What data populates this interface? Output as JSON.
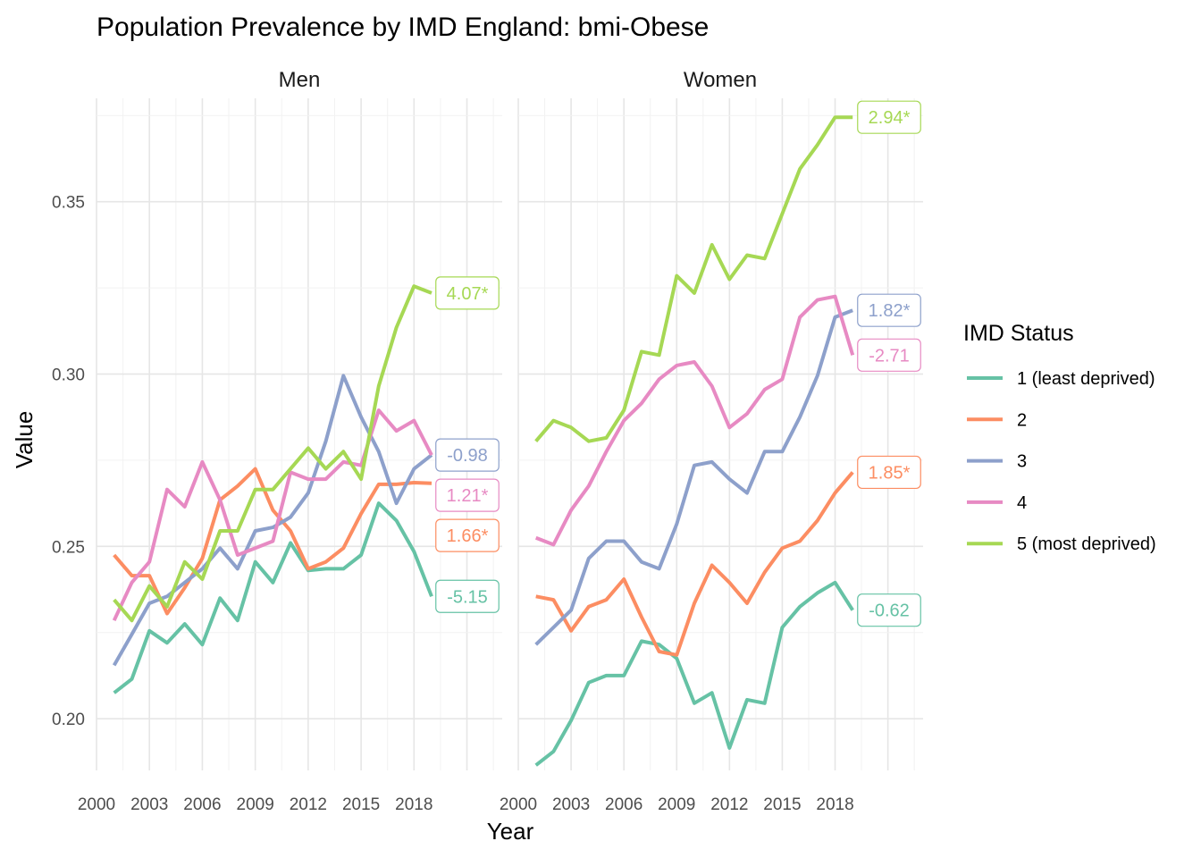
{
  "chart_data": {
    "type": "line",
    "title": "Population Prevalence by IMD England: bmi-Obese",
    "xlabel": "Year",
    "ylabel": "Value",
    "x_ticks": [
      "2000",
      "2003",
      "2006",
      "2009",
      "2012",
      "2015",
      "2018"
    ],
    "y_ticks": [
      "0.20",
      "0.25",
      "0.30",
      "0.35"
    ],
    "xlim": [
      2000,
      2023
    ],
    "ylim": [
      0.185,
      0.38
    ],
    "grid": true,
    "legend_placement": "right",
    "legend": {
      "title": "IMD Status",
      "entries": [
        "1 (least deprived)",
        "2",
        "3",
        "4",
        "5 (most deprived)"
      ],
      "colors": [
        "#66c2a5",
        "#fc8d62",
        "#8da0cb",
        "#e78ac3",
        "#a6d854"
      ]
    },
    "x": [
      2001,
      2002,
      2003,
      2004,
      2005,
      2006,
      2007,
      2008,
      2009,
      2010,
      2011,
      2012,
      2013,
      2014,
      2015,
      2016,
      2017,
      2018,
      2019
    ],
    "panels": [
      {
        "name": "Men",
        "series": [
          {
            "name": "1 (least deprived)",
            "values": [
              0.2075,
              0.2115,
              0.2255,
              0.222,
              0.2275,
              0.2215,
              0.235,
              0.2285,
              0.2455,
              0.2395,
              0.251,
              0.243,
              0.2435,
              0.2435,
              0.2475,
              0.2625,
              0.2575,
              0.2485,
              0.2355
            ],
            "label": "-5.15"
          },
          {
            "name": "2",
            "values": [
              0.2475,
              0.2415,
              0.2415,
              0.2305,
              0.238,
              0.2465,
              0.2635,
              0.2675,
              0.2725,
              0.2605,
              0.2545,
              0.2435,
              0.2455,
              0.2495,
              0.2595,
              0.268,
              0.268,
              0.2685,
              0.2683
            ],
            "label": "1.66*"
          },
          {
            "name": "3",
            "values": [
              0.2155,
              0.2245,
              0.2335,
              0.2355,
              0.2395,
              0.2435,
              0.2495,
              0.2435,
              0.2545,
              0.2555,
              0.2585,
              0.2655,
              0.2805,
              0.2995,
              0.2875,
              0.2775,
              0.2625,
              0.2725,
              0.2765
            ],
            "label": "-0.98"
          },
          {
            "name": "4",
            "values": [
              0.2285,
              0.2395,
              0.2455,
              0.2665,
              0.2615,
              0.2745,
              0.2635,
              0.2475,
              0.2495,
              0.2515,
              0.2715,
              0.2695,
              0.2695,
              0.2745,
              0.2735,
              0.2895,
              0.2835,
              0.2865,
              0.2765
            ],
            "label": "1.21*"
          },
          {
            "name": "5 (most deprived)",
            "values": [
              0.2345,
              0.2285,
              0.2385,
              0.2325,
              0.2455,
              0.2405,
              0.2545,
              0.2545,
              0.2665,
              0.2665,
              0.2725,
              0.2785,
              0.2725,
              0.2775,
              0.2695,
              0.2965,
              0.3135,
              0.3255,
              0.3235
            ],
            "label": "4.07*"
          }
        ]
      },
      {
        "name": "Women",
        "series": [
          {
            "name": "1 (least deprived)",
            "values": [
              0.1865,
              0.1905,
              0.1995,
              0.2105,
              0.2125,
              0.2125,
              0.2225,
              0.2215,
              0.2175,
              0.2045,
              0.2075,
              0.1915,
              0.2055,
              0.2045,
              0.2265,
              0.2325,
              0.2365,
              0.2395,
              0.2315
            ],
            "label": "-0.62"
          },
          {
            "name": "2",
            "values": [
              0.2355,
              0.2345,
              0.2255,
              0.2325,
              0.2345,
              0.2405,
              0.2295,
              0.2195,
              0.2185,
              0.2335,
              0.2445,
              0.2395,
              0.2335,
              0.2425,
              0.2495,
              0.2515,
              0.2575,
              0.2655,
              0.2715
            ],
            "label": "1.85*"
          },
          {
            "name": "3",
            "values": [
              0.2215,
              0.2265,
              0.2315,
              0.2465,
              0.2515,
              0.2515,
              0.2455,
              0.2435,
              0.2565,
              0.2735,
              0.2745,
              0.2695,
              0.2655,
              0.2775,
              0.2775,
              0.2875,
              0.2995,
              0.3165,
              0.3185
            ],
            "label": "1.82*"
          },
          {
            "name": "4",
            "values": [
              0.2525,
              0.2505,
              0.2605,
              0.2675,
              0.2775,
              0.2865,
              0.2915,
              0.2985,
              0.3025,
              0.3035,
              0.2965,
              0.2845,
              0.2885,
              0.2955,
              0.2985,
              0.3165,
              0.3215,
              0.3225,
              0.3055
            ],
            "label": "-2.71"
          },
          {
            "name": "5 (most deprived)",
            "values": [
              0.2805,
              0.2865,
              0.2845,
              0.2805,
              0.2815,
              0.2895,
              0.3065,
              0.3055,
              0.3285,
              0.3235,
              0.3375,
              0.3275,
              0.3345,
              0.3335,
              0.3465,
              0.3595,
              0.3665,
              0.3745,
              0.3745
            ],
            "label": "2.94*"
          }
        ]
      }
    ]
  }
}
